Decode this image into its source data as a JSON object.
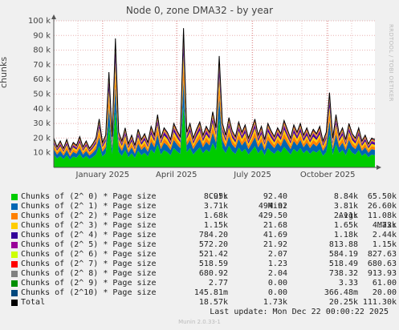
{
  "title": "Node 0, zone DMA32 - by year",
  "vlabel": "chunks",
  "watermark": "RRDTOOL / TOBI OETIKER",
  "footer": "Munin 2.0.33-1",
  "last_update": "Last update:  Mon Dec 22 00:00:22 2025",
  "legend_headers": [
    "Cur:",
    "Min:",
    "Avg:",
    "Max:"
  ],
  "legend": [
    {
      "name": "Chunks of (2^ 0) * Page size",
      "color": "#00cc00",
      "cur": "8.95k",
      "min": "92.40",
      "avg": "8.84k",
      "max": "65.50k"
    },
    {
      "name": "Chunks of (2^ 1) * Page size",
      "color": "#0066b3",
      "cur": "3.71k",
      "min": "494.92",
      "avg": "3.81k",
      "max": "26.60k"
    },
    {
      "name": "Chunks of (2^ 2) * Page size",
      "color": "#ff8000",
      "cur": "1.68k",
      "min": "429.50",
      "avg": "2.11k",
      "max": "11.08k"
    },
    {
      "name": "Chunks of (2^ 3) * Page size",
      "color": "#ffcc00",
      "cur": "1.15k",
      "min": "21.68",
      "avg": "1.65k",
      "max": "4.73k"
    },
    {
      "name": "Chunks of (2^ 4) * Page size",
      "color": "#330099",
      "cur": "784.20",
      "min": "41.69",
      "avg": "1.18k",
      "max": "2.44k"
    },
    {
      "name": "Chunks of (2^ 5) * Page size",
      "color": "#990099",
      "cur": "572.20",
      "min": "21.92",
      "avg": "813.88",
      "max": "1.15k"
    },
    {
      "name": "Chunks of (2^ 6) * Page size",
      "color": "#ccff00",
      "cur": "521.42",
      "min": "2.07",
      "avg": "584.19",
      "max": "827.63"
    },
    {
      "name": "Chunks of (2^ 7) * Page size",
      "color": "#ff0000",
      "cur": "518.59",
      "min": "1.23",
      "avg": "518.49",
      "max": "680.63"
    },
    {
      "name": "Chunks of (2^ 8) * Page size",
      "color": "#808080",
      "cur": "680.92",
      "min": "2.04",
      "avg": "738.32",
      "max": "913.93"
    },
    {
      "name": "Chunks of (2^ 9) * Page size",
      "color": "#008f00",
      "cur": "2.77",
      "min": "0.00",
      "avg": "3.33",
      "max": "61.00"
    },
    {
      "name": "Chunks of (2^10) * Page size",
      "color": "#00487d",
      "cur": "145.81m",
      "min": "0.00",
      "avg": "366.48m",
      "max": "20.00"
    },
    {
      "name": "Total",
      "color": "#000000",
      "cur": "18.57k",
      "min": "1.73k",
      "avg": "20.25k",
      "max": "111.30k"
    }
  ],
  "chart_data": {
    "type": "area",
    "ylim": [
      0,
      100000
    ],
    "yticks": [
      10000,
      20000,
      30000,
      40000,
      50000,
      60000,
      70000,
      80000,
      90000,
      100000
    ],
    "ytick_labels": [
      "10 k",
      "20 k",
      "30 k",
      "40 k",
      "50 k",
      "60 k",
      "70 k",
      "80 k",
      "90 k",
      "100 k"
    ],
    "xticks": [
      {
        "label": "January 2025",
        "pos": 0.152
      },
      {
        "label": "April 2025",
        "pos": 0.382
      },
      {
        "label": "July 2025",
        "pos": 0.619
      },
      {
        "label": "October 2025",
        "pos": 0.853
      }
    ],
    "total_series": [
      20000,
      14000,
      18000,
      13000,
      19000,
      12000,
      17000,
      15000,
      21000,
      14000,
      18000,
      13000,
      16000,
      20000,
      33000,
      17000,
      22000,
      65000,
      21000,
      88000,
      24000,
      18000,
      27000,
      16000,
      22000,
      15000,
      26000,
      19000,
      23000,
      17000,
      28000,
      22000,
      36000,
      20000,
      27000,
      24000,
      19000,
      30000,
      25000,
      21000,
      95000,
      24000,
      30000,
      20000,
      26000,
      31000,
      22000,
      28000,
      24000,
      38000,
      27000,
      76000,
      30000,
      22000,
      34000,
      25000,
      21000,
      31000,
      24000,
      29000,
      20000,
      26000,
      33000,
      22000,
      28000,
      19000,
      30000,
      25000,
      21000,
      27000,
      23000,
      32000,
      26000,
      20000,
      29000,
      24000,
      30000,
      22000,
      27000,
      21000,
      26000,
      23000,
      28000,
      18000,
      24000,
      51000,
      20000,
      36000,
      22000,
      27000,
      19000,
      30000,
      23000,
      20000,
      27000,
      18000,
      22000,
      16000,
      20000,
      19000
    ]
  }
}
